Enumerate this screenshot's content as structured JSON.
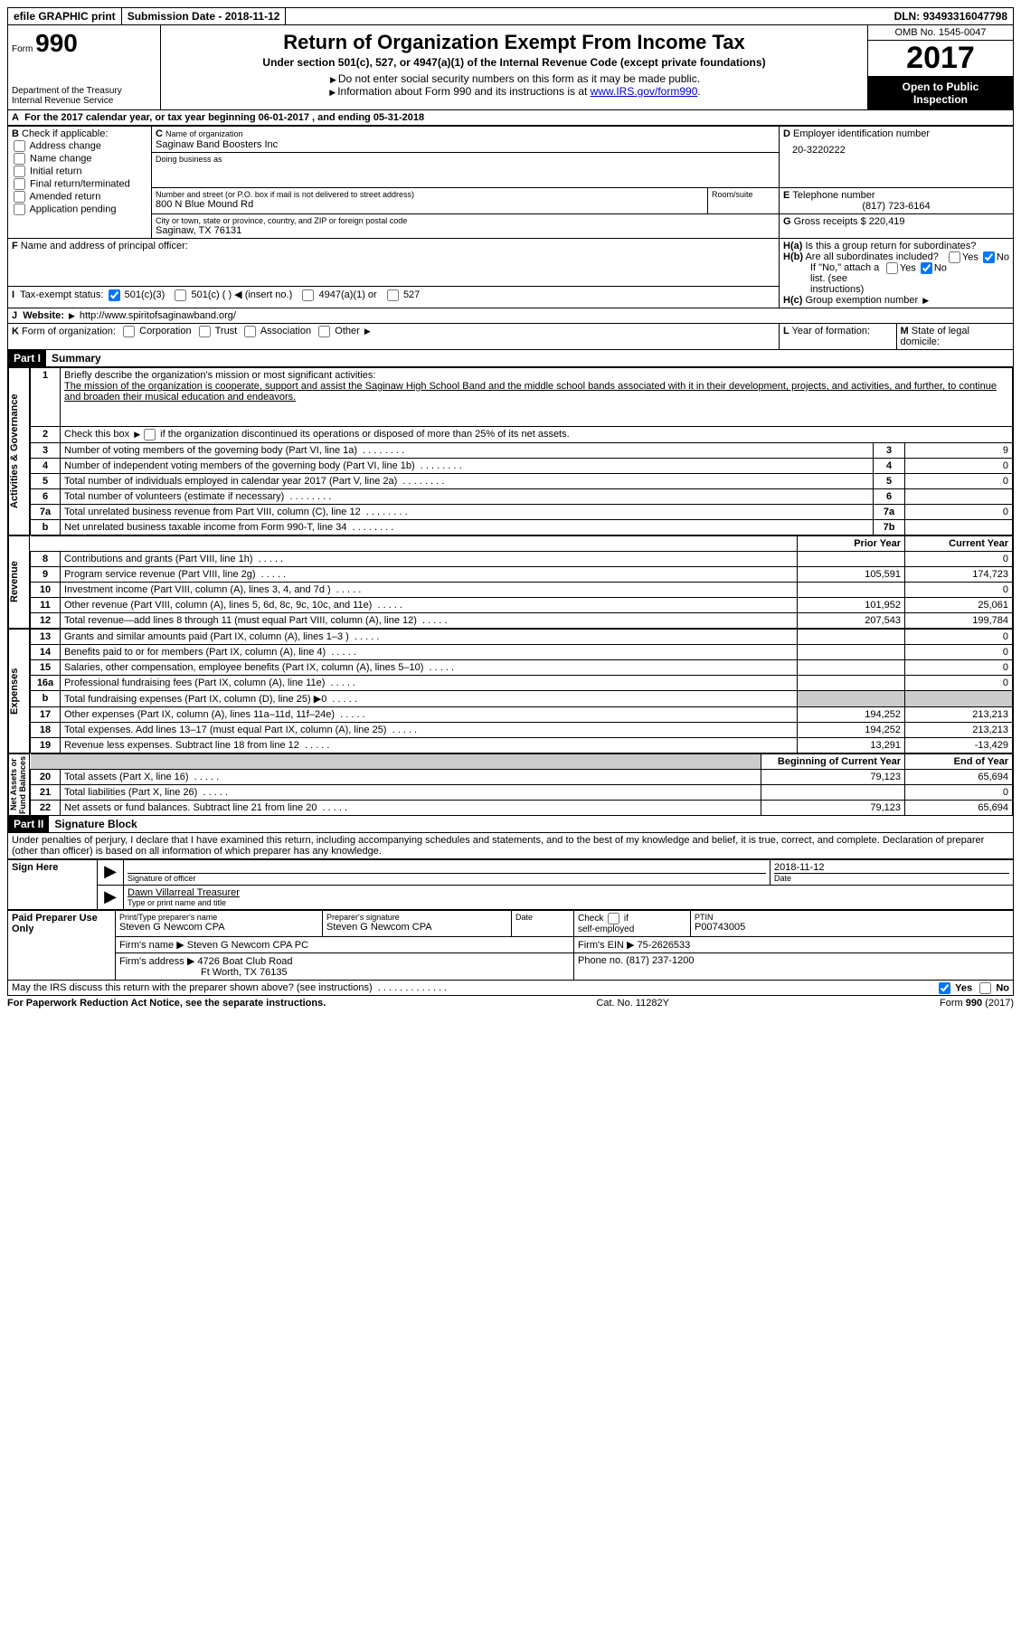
{
  "topbar": {
    "efile": "efile GRAPHIC print",
    "submission_label": "Submission Date - ",
    "submission_date": "2018-11-12",
    "dln_label": "DLN: ",
    "dln": "93493316047798"
  },
  "header": {
    "form_prefix": "Form",
    "form_no": "990",
    "dept1": "Department of the Treasury",
    "dept2": "Internal Revenue Service",
    "title": "Return of Organization Exempt From Income Tax",
    "subtitle": "Under section 501(c), 527, or 4947(a)(1) of the Internal Revenue Code (except private foundations)",
    "note1": "Do not enter social security numbers on this form as it may be made public.",
    "note2_pre": "Information about Form 990 and its instructions is at ",
    "note2_link": "www.IRS.gov/form990",
    "omb": "OMB No. 1545-0047",
    "year": "2017",
    "open1": "Open to Public",
    "open2": "Inspection"
  },
  "period": {
    "line": "For the 2017 calendar year, or tax year beginning 06-01-2017   , and ending 05-31-2018"
  },
  "boxB": {
    "label": "Check if applicable:",
    "opts": [
      "Address change",
      "Name change",
      "Initial return",
      "Final return/terminated",
      "Amended return",
      "Application pending"
    ]
  },
  "boxC": {
    "name_label": "Name of organization",
    "name": "Saginaw Band Boosters Inc",
    "dba_label": "Doing business as",
    "street_label": "Number and street (or P.O. box if mail is not delivered to street address)",
    "room_label": "Room/suite",
    "street": "800 N Blue Mound Rd",
    "city_label": "City or town, state or province, country, and ZIP or foreign postal code",
    "city": "Saginaw, TX  76131"
  },
  "boxD": {
    "label": "Employer identification number",
    "value": "20-3220222"
  },
  "boxE": {
    "label": "Telephone number",
    "value": "(817) 723-6164"
  },
  "boxG": {
    "label": "Gross receipts $",
    "value": "220,419"
  },
  "boxF": {
    "label": "Name and address of principal officer:"
  },
  "boxH": {
    "a": "Is this a group return for subordinates?",
    "b": "Are all subordinates included?",
    "b_note": "If \"No,\" attach a list. (see instructions)",
    "c": "Group exemption number",
    "yes": "Yes",
    "no": "No"
  },
  "rowI": {
    "label": "Tax-exempt status:",
    "o1": "501(c)(3)",
    "o2": "501(c) (   )",
    "o2_note": "(insert no.)",
    "o3": "4947(a)(1) or",
    "o4": "527"
  },
  "rowJ": {
    "label": "Website:",
    "url": "http://www.spiritofsaginawband.org/"
  },
  "rowK": {
    "label": "Form of organization:",
    "opts": [
      "Corporation",
      "Trust",
      "Association",
      "Other"
    ],
    "L": "Year of formation:",
    "M": "State of legal domicile:"
  },
  "part1": {
    "hdr": "Part I",
    "title": "Summary",
    "l1": "Briefly describe the organization's mission or most significant activities:",
    "mission": "The mission of the organization is cooperate, support and assist the Saginaw High School Band and the middle school bands associated with it in their development, projects, and activities, and further, to continue and broaden their musical education and endeavors.",
    "l2": "Check this box        if the organization discontinued its operations or disposed of more than 25% of its net assets.",
    "sideA": "Activities & Governance",
    "sideR": "Revenue",
    "sideE": "Expenses",
    "sideN": "Net Assets or\nFund Balances",
    "rows_ag": [
      {
        "n": "3",
        "t": "Number of voting members of the governing body (Part VI, line 1a)",
        "k": "3",
        "v": "9"
      },
      {
        "n": "4",
        "t": "Number of independent voting members of the governing body (Part VI, line 1b)",
        "k": "4",
        "v": "0"
      },
      {
        "n": "5",
        "t": "Total number of individuals employed in calendar year 2017 (Part V, line 2a)",
        "k": "5",
        "v": "0"
      },
      {
        "n": "6",
        "t": "Total number of volunteers (estimate if necessary)",
        "k": "6",
        "v": ""
      },
      {
        "n": "7a",
        "t": "Total unrelated business revenue from Part VIII, column (C), line 12",
        "k": "7a",
        "v": "0"
      },
      {
        "n": "b",
        "t": "Net unrelated business taxable income from Form 990-T, line 34",
        "k": "7b",
        "v": ""
      }
    ],
    "col_prior": "Prior Year",
    "col_curr": "Current Year",
    "rows_rev": [
      {
        "n": "8",
        "t": "Contributions and grants (Part VIII, line 1h)",
        "p": "",
        "c": "0"
      },
      {
        "n": "9",
        "t": "Program service revenue (Part VIII, line 2g)",
        "p": "105,591",
        "c": "174,723"
      },
      {
        "n": "10",
        "t": "Investment income (Part VIII, column (A), lines 3, 4, and 7d )",
        "p": "",
        "c": "0"
      },
      {
        "n": "11",
        "t": "Other revenue (Part VIII, column (A), lines 5, 6d, 8c, 9c, 10c, and 11e)",
        "p": "101,952",
        "c": "25,061"
      },
      {
        "n": "12",
        "t": "Total revenue—add lines 8 through 11 (must equal Part VIII, column (A), line 12)",
        "p": "207,543",
        "c": "199,784"
      }
    ],
    "rows_exp": [
      {
        "n": "13",
        "t": "Grants and similar amounts paid (Part IX, column (A), lines 1–3 )",
        "p": "",
        "c": "0"
      },
      {
        "n": "14",
        "t": "Benefits paid to or for members (Part IX, column (A), line 4)",
        "p": "",
        "c": "0"
      },
      {
        "n": "15",
        "t": "Salaries, other compensation, employee benefits (Part IX, column (A), lines 5–10)",
        "p": "",
        "c": "0"
      },
      {
        "n": "16a",
        "t": "Professional fundraising fees (Part IX, column (A), line 11e)",
        "p": "",
        "c": "0"
      },
      {
        "n": "b",
        "t": "Total fundraising expenses (Part IX, column (D), line 25) ▶0",
        "p": "shade",
        "c": "shade"
      },
      {
        "n": "17",
        "t": "Other expenses (Part IX, column (A), lines 11a–11d, 11f–24e)",
        "p": "194,252",
        "c": "213,213"
      },
      {
        "n": "18",
        "t": "Total expenses. Add lines 13–17 (must equal Part IX, column (A), line 25)",
        "p": "194,252",
        "c": "213,213"
      },
      {
        "n": "19",
        "t": "Revenue less expenses. Subtract line 18 from line 12",
        "p": "13,291",
        "c": "-13,429"
      }
    ],
    "col_beg": "Beginning of Current Year",
    "col_end": "End of Year",
    "rows_net": [
      {
        "n": "20",
        "t": "Total assets (Part X, line 16)",
        "p": "79,123",
        "c": "65,694"
      },
      {
        "n": "21",
        "t": "Total liabilities (Part X, line 26)",
        "p": "",
        "c": "0"
      },
      {
        "n": "22",
        "t": "Net assets or fund balances. Subtract line 21 from line 20",
        "p": "79,123",
        "c": "65,694"
      }
    ]
  },
  "part2": {
    "hdr": "Part II",
    "title": "Signature Block",
    "decl": "Under penalties of perjury, I declare that I have examined this return, including accompanying schedules and statements, and to the best of my knowledge and belief, it is true, correct, and complete. Declaration of preparer (other than officer) is based on all information of which preparer has any knowledge.",
    "sign_here": "Sign Here",
    "sig_officer": "Signature of officer",
    "date": "Date",
    "sig_date": "2018-11-12",
    "name_title": "Dawn Villarreal Treasurer",
    "type_name": "Type or print name and title",
    "paid": "Paid Preparer Use Only",
    "prep_name_l": "Print/Type preparer's name",
    "prep_name": "Steven G Newcom CPA",
    "prep_sig_l": "Preparer's signature",
    "prep_sig": "Steven G Newcom CPA",
    "check_self": "Check        if self-employed",
    "ptin_l": "PTIN",
    "ptin": "P00743005",
    "firm_name_l": "Firm's name   ▶",
    "firm_name": "Steven G Newcom CPA PC",
    "firm_ein_l": "Firm's EIN ▶",
    "firm_ein": "75-2626533",
    "firm_addr_l": "Firm's address ▶",
    "firm_addr": "4726 Boat Club Road",
    "firm_city": "Ft Worth, TX  76135",
    "phone_l": "Phone no.",
    "phone": "(817) 237-1200",
    "discuss": "May the IRS discuss this return with the preparer shown above? (see instructions)",
    "yes": "Yes",
    "no": "No"
  },
  "footer": {
    "left": "For Paperwork Reduction Act Notice, see the separate instructions.",
    "mid": "Cat. No. 11282Y",
    "right": "Form 990 (2017)"
  },
  "colors": {
    "link": "#0000cc",
    "shade": "#cccccc"
  }
}
